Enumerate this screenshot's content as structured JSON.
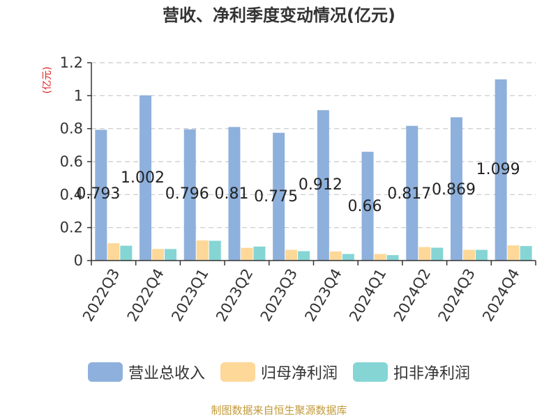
{
  "chart_data": {
    "type": "bar",
    "title": "营收、净利季度变动情况(亿元)",
    "ylabel": "(亿元)",
    "xlabel": "",
    "ylim": [
      0,
      1.2
    ],
    "yticks": [
      0,
      0.2,
      0.4,
      0.6,
      0.8,
      1,
      1.2
    ],
    "ytick_labels": [
      "0",
      "0.2",
      "0.4",
      "0.6",
      "0.8",
      "1",
      "1.2"
    ],
    "grid": true,
    "legend_position": "bottom",
    "categories": [
      "2022Q3",
      "2022Q4",
      "2023Q1",
      "2023Q2",
      "2023Q3",
      "2023Q4",
      "2024Q1",
      "2024Q2",
      "2024Q3",
      "2024Q4"
    ],
    "series": [
      {
        "name": "营业总收入",
        "color": "#8eb0dc",
        "values": [
          0.793,
          1.002,
          0.796,
          0.81,
          0.775,
          0.912,
          0.66,
          0.817,
          0.869,
          1.099
        ],
        "data_labels": [
          "0.793",
          "1.002",
          "0.796",
          "0.81",
          "0.775",
          "0.912",
          "0.66",
          "0.817",
          "0.869",
          "1.099"
        ]
      },
      {
        "name": "归母净利润",
        "color": "#fdd898",
        "values": [
          0.105,
          0.07,
          0.122,
          0.077,
          0.065,
          0.055,
          0.04,
          0.082,
          0.065,
          0.092
        ]
      },
      {
        "name": "扣非净利润",
        "color": "#86d5d5",
        "values": [
          0.09,
          0.07,
          0.12,
          0.085,
          0.057,
          0.04,
          0.033,
          0.078,
          0.065,
          0.088
        ]
      }
    ]
  },
  "footer": {
    "source": "制图数据来自恒生聚源数据库"
  }
}
